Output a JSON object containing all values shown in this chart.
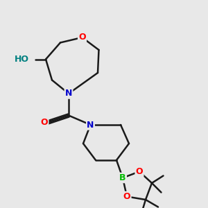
{
  "bg_color": "#e8e8e8",
  "bond_color": "#1a1a1a",
  "bond_lw": 1.8,
  "atom_colors": {
    "O": "#ff0000",
    "N": "#0000cc",
    "B": "#00bb00",
    "C": "#1a1a1a",
    "H": "#008080"
  },
  "font_size_atom": 9,
  "font_size_small": 7
}
